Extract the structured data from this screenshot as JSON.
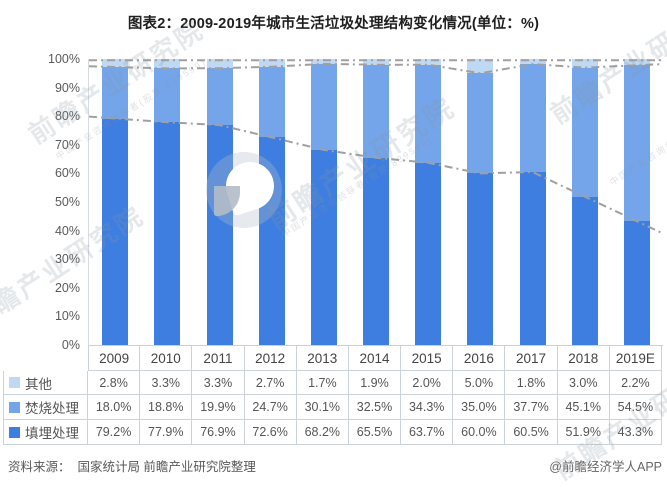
{
  "chart_data": {
    "type": "bar",
    "variant": "100-percent-stacked-columns-with-dash-dot-cumulative-lines",
    "title": "图表2：2009-2019年城市生活垃圾处理结构变化情况(单位：%)",
    "categories": [
      "2009",
      "2010",
      "2011",
      "2012",
      "2013",
      "2014",
      "2015",
      "2016",
      "2017",
      "2018",
      "2019E"
    ],
    "series": [
      {
        "name": "其他",
        "color": "#bfd8f4",
        "values": [
          2.8,
          3.3,
          3.3,
          2.7,
          1.7,
          1.9,
          2.0,
          5.0,
          1.8,
          3.0,
          2.2
        ]
      },
      {
        "name": "焚烧处理",
        "color": "#74a5ea",
        "values": [
          18.0,
          18.8,
          19.9,
          24.7,
          30.1,
          32.5,
          34.3,
          35.0,
          37.7,
          45.1,
          54.5
        ]
      },
      {
        "name": "填埋处理",
        "color": "#3e7ee0",
        "values": [
          79.2,
          77.9,
          76.9,
          72.6,
          68.2,
          65.5,
          63.7,
          60.0,
          60.5,
          51.9,
          43.3
        ]
      }
    ],
    "stack_order_note": "填埋处理 at bottom, 焚烧处理 middle, 其他 on top; gray dash-dot lines trace cumulative totals",
    "line_style": {
      "color": "#a0a0a0",
      "pattern": "dash-dot"
    },
    "ylim": [
      0,
      100
    ],
    "ytick_labels": [
      "0%",
      "10%",
      "20%",
      "30%",
      "40%",
      "50%",
      "60%",
      "70%",
      "80%",
      "90%",
      "100%"
    ],
    "gridlines": false,
    "legend_position": "table-left-column",
    "value_suffix": "%"
  },
  "footer": {
    "source": "资料来源：  国家统计局 前瞻产业研究院整理",
    "credit": "@前瞻经济学人APP"
  },
  "watermark": {
    "text": "前瞻产业研究院",
    "tagline": "中国产业咨询领导者(股票:839599)"
  }
}
